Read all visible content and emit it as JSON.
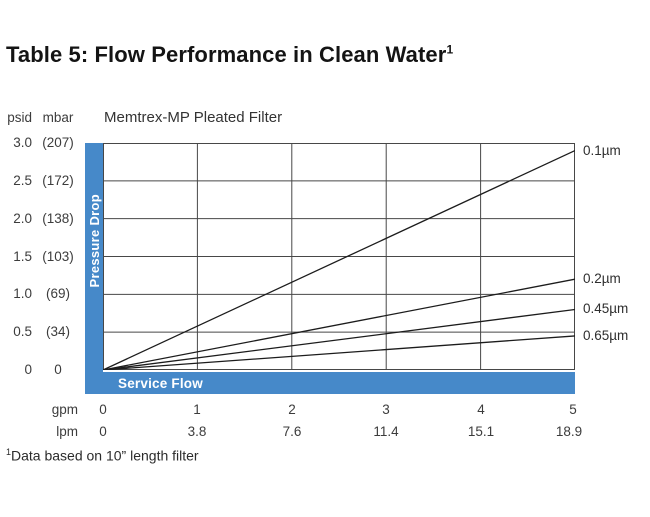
{
  "page": {
    "title": "Table 5: Flow Performance in Clean Water",
    "title_sup": "1",
    "footnote_sup": "1",
    "footnote": "Data based on 10” length filter"
  },
  "chart": {
    "subtitle": "Memtrex-MP Pleated Filter",
    "pressure_axis_label": "Pressure Drop",
    "flow_axis_label": "Service Flow",
    "psid_unit": "psid",
    "mbar_unit": "mbar",
    "gpm_unit": "gpm",
    "lpm_unit": "lpm",
    "accent_color": "#4689c9"
  },
  "chart_data": {
    "type": "line",
    "title": "Memtrex-MP Pleated Filter",
    "xlabel": "Service Flow (gpm / lpm)",
    "ylabel": "Pressure Drop (psid / mbar)",
    "xlim": [
      0,
      5
    ],
    "ylim": [
      0,
      3
    ],
    "grid": true,
    "legend_position": "right-of-plot",
    "x_ticks_gpm": [
      "0",
      "1",
      "2",
      "3",
      "4",
      "5"
    ],
    "x_ticks_lpm": [
      "0",
      "3.8",
      "7.6",
      "11.4",
      "15.1",
      "18.9"
    ],
    "y_ticks_psid": [
      "3.0",
      "2.5",
      "2.0",
      "1.5",
      "1.0",
      "0.5",
      "0"
    ],
    "y_ticks_mbar": [
      "(207)",
      "(172)",
      "(138)",
      "(103)",
      "(69)",
      "(34)",
      "0"
    ],
    "series": [
      {
        "name": "0.1µm",
        "x": [
          0,
          5
        ],
        "y": [
          0,
          2.9
        ]
      },
      {
        "name": "0.2µm",
        "x": [
          0,
          5
        ],
        "y": [
          0,
          1.2
        ]
      },
      {
        "name": "0.45µm",
        "x": [
          0,
          5
        ],
        "y": [
          0,
          0.8
        ]
      },
      {
        "name": "0.65µm",
        "x": [
          0,
          5
        ],
        "y": [
          0,
          0.45
        ]
      }
    ]
  }
}
